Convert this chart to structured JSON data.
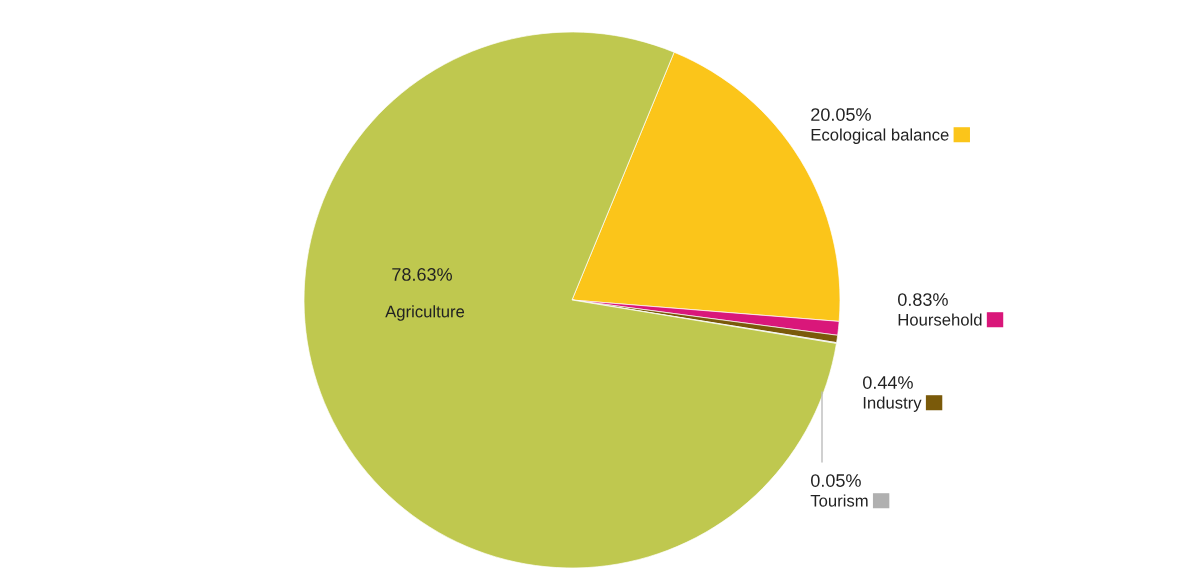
{
  "chart_data": {
    "type": "pie",
    "categories": [
      "Ecological balance",
      "Hoursehold",
      "Industry",
      "Tourism",
      "Agriculture"
    ],
    "values": [
      20.05,
      0.83,
      0.44,
      0.05,
      78.63
    ],
    "colors": [
      "#fbc51a",
      "#d9177a",
      "#7a5a0a",
      "#b0b0b0",
      "#bfc84f"
    ],
    "legend": "right",
    "value_labels": [
      "20.05%",
      "0.83%",
      "0.44%",
      "0.05%",
      "78.63%"
    ]
  }
}
